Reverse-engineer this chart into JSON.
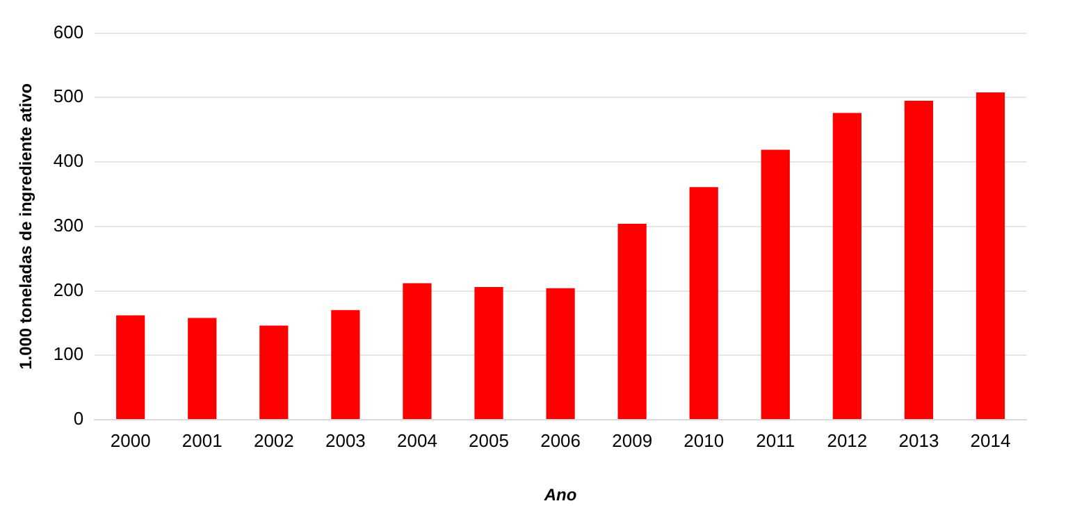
{
  "chart_data": {
    "type": "bar",
    "xlabel": "Ano",
    "ylabel": "1.000 toneladas de ingrediente ativo",
    "categories": [
      "2000",
      "2001",
      "2002",
      "2003",
      "2004",
      "2005",
      "2006",
      "2009",
      "2010",
      "2011",
      "2012",
      "2013",
      "2014"
    ],
    "values": [
      162,
      158,
      146,
      170,
      212,
      206,
      204,
      304,
      361,
      419,
      476,
      495,
      508
    ],
    "color": "#ff0000",
    "ylim": [
      0,
      600
    ],
    "yticks": [
      0,
      100,
      200,
      300,
      400,
      500,
      600
    ],
    "grid": "y"
  }
}
